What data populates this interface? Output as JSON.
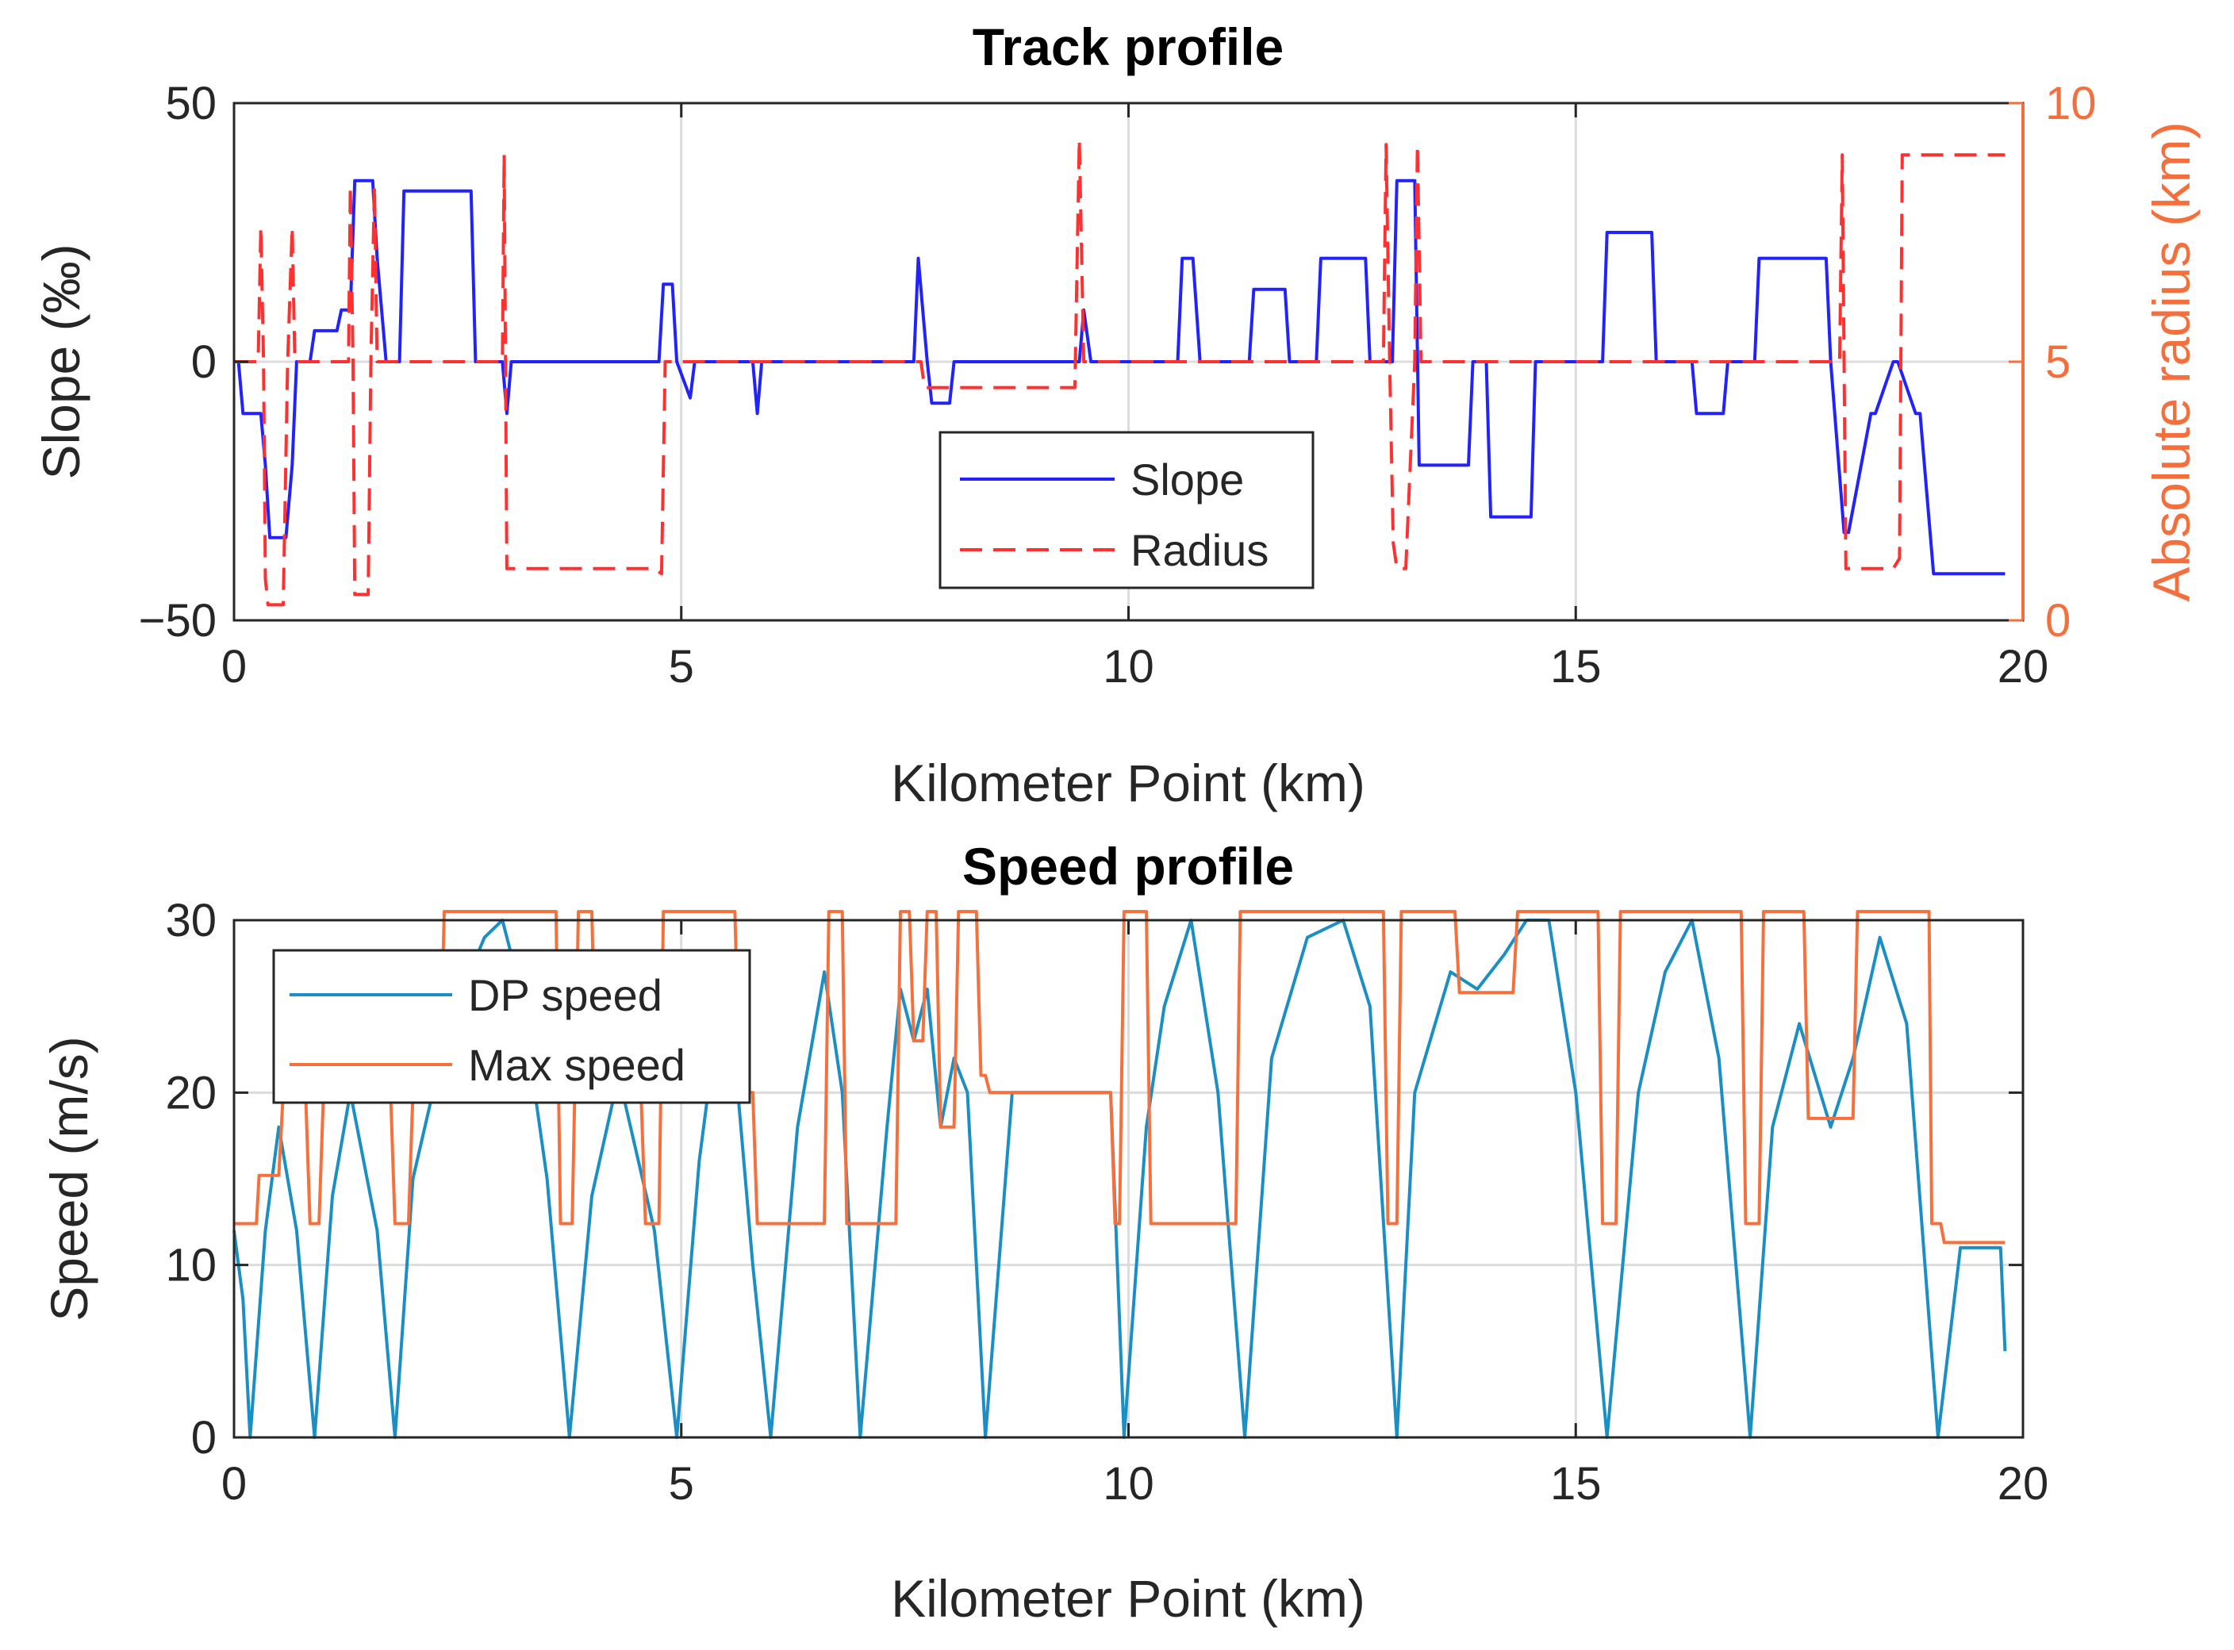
{
  "colors": {
    "slope": "#2222ff",
    "radius": "#ff3030",
    "radius_axis": "#f56f3c",
    "dp_speed": "#1b8fc4",
    "max_speed": "#f5703c",
    "grid": "#dcdcdc",
    "axis": "#262626"
  },
  "chart_data": [
    {
      "type": "line",
      "title": "Track profile",
      "xlabel": "Kilometer Point (km)",
      "ylabel": "Slope (‰)",
      "y2label": "Absolute radius (km)",
      "xlim": [
        0,
        20
      ],
      "ylim": [
        -50,
        50
      ],
      "y2lim": [
        0,
        10
      ],
      "xticks": [
        0,
        5,
        10,
        15,
        20
      ],
      "xtick_labels": [
        "0",
        "5",
        "10",
        "15",
        "20"
      ],
      "yticks": [
        -50,
        0,
        50
      ],
      "ytick_labels": [
        "−50",
        "0",
        "50"
      ],
      "y2ticks": [
        0,
        5,
        10
      ],
      "y2tick_labels": [
        "0",
        "5",
        "10"
      ],
      "grid": true,
      "legend_position": "center",
      "series": [
        {
          "name": "Slope",
          "axis": "left",
          "style": "solid",
          "x": [
            0.0,
            0.05,
            0.1,
            0.3,
            0.35,
            0.4,
            0.58,
            0.65,
            0.7,
            0.85,
            0.9,
            1.15,
            1.2,
            1.3,
            1.35,
            1.55,
            1.6,
            1.7,
            1.75,
            1.85,
            1.9,
            2.65,
            2.7,
            3.0,
            3.05,
            3.1,
            4.75,
            4.8,
            4.9,
            4.95,
            5.1,
            5.15,
            5.8,
            5.85,
            5.9,
            7.6,
            7.65,
            7.75,
            7.8,
            8.0,
            8.05,
            8.1,
            9.45,
            9.5,
            9.58,
            9.65,
            10.55,
            10.6,
            10.72,
            10.8,
            11.35,
            11.4,
            11.75,
            11.8,
            12.1,
            12.15,
            12.65,
            12.7,
            12.95,
            13.0,
            13.2,
            13.25,
            13.8,
            13.85,
            14.0,
            14.05,
            14.5,
            14.55,
            15.3,
            15.35,
            15.85,
            15.9,
            16.3,
            16.35,
            16.65,
            16.7,
            17.0,
            17.05,
            17.8,
            17.85,
            18.0,
            18.05,
            18.3,
            18.35,
            18.55,
            18.6,
            18.8,
            18.85,
            19.0,
            19.05,
            19.8
          ],
          "y": [
            0,
            0,
            -10,
            -10,
            -20,
            -34,
            -34,
            -20,
            0,
            0,
            6,
            6,
            10,
            10,
            35,
            35,
            20,
            0,
            0,
            0,
            33,
            33,
            0,
            0,
            -10,
            0,
            0,
            15,
            15,
            0,
            -7,
            0,
            0,
            -10,
            0,
            0,
            20,
            0,
            -8,
            -8,
            0,
            0,
            0,
            10,
            0,
            0,
            0,
            20,
            20,
            0,
            0,
            14,
            14,
            0,
            0,
            20,
            20,
            0,
            0,
            35,
            35,
            -20,
            -20,
            0,
            0,
            -30,
            -30,
            0,
            0,
            25,
            25,
            0,
            0,
            -10,
            -10,
            0,
            0,
            20,
            20,
            0,
            -33,
            -33,
            -10,
            -10,
            0,
            0,
            -10,
            -10,
            -41,
            -41,
            -41
          ]
        },
        {
          "name": "Radius",
          "axis": "right",
          "style": "dashed",
          "x": [
            0.0,
            0.27,
            0.3,
            0.33,
            0.35,
            0.38,
            0.55,
            0.6,
            0.65,
            0.68,
            0.7,
            1.28,
            1.3,
            1.33,
            1.35,
            1.5,
            1.53,
            1.57,
            1.6,
            3.0,
            3.02,
            3.05,
            4.7,
            4.78,
            4.82,
            4.85,
            7.68,
            7.72,
            9.4,
            9.45,
            9.5,
            12.85,
            12.88,
            12.92,
            12.96,
            13.0,
            13.1,
            13.2,
            13.23,
            13.27,
            17.95,
            17.98,
            18.02,
            18.55,
            18.62,
            18.65,
            19.8
          ],
          "y": [
            5.0,
            5.0,
            7.6,
            5.0,
            0.8,
            0.3,
            0.3,
            5.0,
            7.6,
            5.0,
            5.0,
            5.0,
            8.4,
            5.0,
            0.5,
            0.5,
            5.0,
            8.4,
            5.0,
            5.0,
            9.0,
            1.0,
            1.0,
            0.9,
            5.0,
            5.0,
            5.0,
            4.5,
            4.5,
            9.3,
            5.0,
            5.0,
            9.2,
            5.0,
            1.5,
            1.0,
            1.0,
            5.0,
            9.2,
            5.0,
            5.0,
            9.0,
            1.0,
            1.0,
            1.2,
            9.0,
            9.0
          ]
        }
      ],
      "legend": [
        "Slope",
        "Radius"
      ]
    },
    {
      "type": "line",
      "title": "Speed profile",
      "xlabel": "Kilometer Point (km)",
      "ylabel": "Speed (m/s)",
      "xlim": [
        0,
        20
      ],
      "ylim": [
        0,
        30
      ],
      "xticks": [
        0,
        5,
        10,
        15,
        20
      ],
      "xtick_labels": [
        "0",
        "5",
        "10",
        "15",
        "20"
      ],
      "yticks": [
        0,
        10,
        20,
        30
      ],
      "ytick_labels": [
        "0",
        "10",
        "20",
        "30"
      ],
      "grid": true,
      "legend_position": "top-left",
      "series": [
        {
          "name": "DP speed",
          "x": [
            0.0,
            0.1,
            0.18,
            0.35,
            0.5,
            0.7,
            0.9,
            1.1,
            1.3,
            1.6,
            1.8,
            2.0,
            2.4,
            2.8,
            3.0,
            3.2,
            3.5,
            3.75,
            4.0,
            4.3,
            4.7,
            4.95,
            5.2,
            5.5,
            5.8,
            6.0,
            6.3,
            6.6,
            6.8,
            7.0,
            7.3,
            7.45,
            7.6,
            7.75,
            7.9,
            8.05,
            8.2,
            8.4,
            8.7,
            9.0,
            9.4,
            9.8,
            9.95,
            10.2,
            10.4,
            10.7,
            11.0,
            11.3,
            11.6,
            12.0,
            12.4,
            12.7,
            13.0,
            13.2,
            13.6,
            13.9,
            14.2,
            14.45,
            14.7,
            15.0,
            15.35,
            15.7,
            16.0,
            16.3,
            16.6,
            16.95,
            17.2,
            17.5,
            17.85,
            18.1,
            18.4,
            18.7,
            19.05,
            19.3,
            19.75,
            19.8
          ],
          "y": [
            12,
            8,
            0,
            12,
            18,
            12,
            0,
            14,
            20,
            12,
            0,
            15,
            24,
            29,
            30,
            26,
            15,
            0,
            14,
            21,
            12,
            0,
            16,
            28,
            10,
            0,
            18,
            27,
            20,
            0,
            18,
            26,
            23,
            26,
            18,
            22,
            20,
            0,
            20,
            20,
            20,
            20,
            0,
            18,
            25,
            30,
            20,
            0,
            22,
            29,
            30,
            25,
            0,
            20,
            27,
            26,
            28,
            30,
            30,
            20,
            0,
            20,
            27,
            30,
            22,
            0,
            18,
            24,
            18,
            22,
            29,
            24,
            0,
            11,
            11,
            5
          ],
          "style": "solid"
        },
        {
          "name": "Max speed",
          "x": [
            0.0,
            0.25,
            0.28,
            0.5,
            0.55,
            0.8,
            0.85,
            0.95,
            1.0,
            1.75,
            1.8,
            1.95,
            2.0,
            2.3,
            2.35,
            3.6,
            3.65,
            3.78,
            3.85,
            4.0,
            4.05,
            4.55,
            4.6,
            4.75,
            4.8,
            5.6,
            5.65,
            5.8,
            5.85,
            6.6,
            6.65,
            6.8,
            6.85,
            7.4,
            7.45,
            7.55,
            7.6,
            7.7,
            7.75,
            7.85,
            7.9,
            8.05,
            8.1,
            8.3,
            8.35,
            8.4,
            8.45,
            9.8,
            9.85,
            9.9,
            9.95,
            10.2,
            10.25,
            11.2,
            11.25,
            11.35,
            11.4,
            12.85,
            12.9,
            13.0,
            13.05,
            13.65,
            13.7,
            14.3,
            14.35,
            15.25,
            15.3,
            15.45,
            15.5,
            16.85,
            16.9,
            17.05,
            17.1,
            17.55,
            17.6,
            18.1,
            18.15,
            18.95,
            18.98,
            19.08,
            19.12,
            19.8
          ],
          "y": [
            12.4,
            12.4,
            15.2,
            15.2,
            20.0,
            20.0,
            12.4,
            12.4,
            20.0,
            20.0,
            12.4,
            12.4,
            20.0,
            20.0,
            30.5,
            30.5,
            12.4,
            12.4,
            30.5,
            30.5,
            20.0,
            20.0,
            12.4,
            12.4,
            30.5,
            30.5,
            20.0,
            20.0,
            12.4,
            12.4,
            30.5,
            30.5,
            12.4,
            12.4,
            30.5,
            30.5,
            23.0,
            23.0,
            30.5,
            30.5,
            18.0,
            18.0,
            30.5,
            30.5,
            21.0,
            21.0,
            20.0,
            20.0,
            12.4,
            12.4,
            30.5,
            30.5,
            12.4,
            12.4,
            30.5,
            30.5,
            30.5,
            30.5,
            12.4,
            12.4,
            30.5,
            30.5,
            25.8,
            25.8,
            30.5,
            30.5,
            12.4,
            12.4,
            30.5,
            30.5,
            12.4,
            12.4,
            30.5,
            30.5,
            18.5,
            18.5,
            30.5,
            30.5,
            12.4,
            12.4,
            11.3,
            11.3
          ],
          "style": "solid"
        }
      ],
      "legend": [
        "DP speed",
        "Max speed"
      ]
    }
  ]
}
